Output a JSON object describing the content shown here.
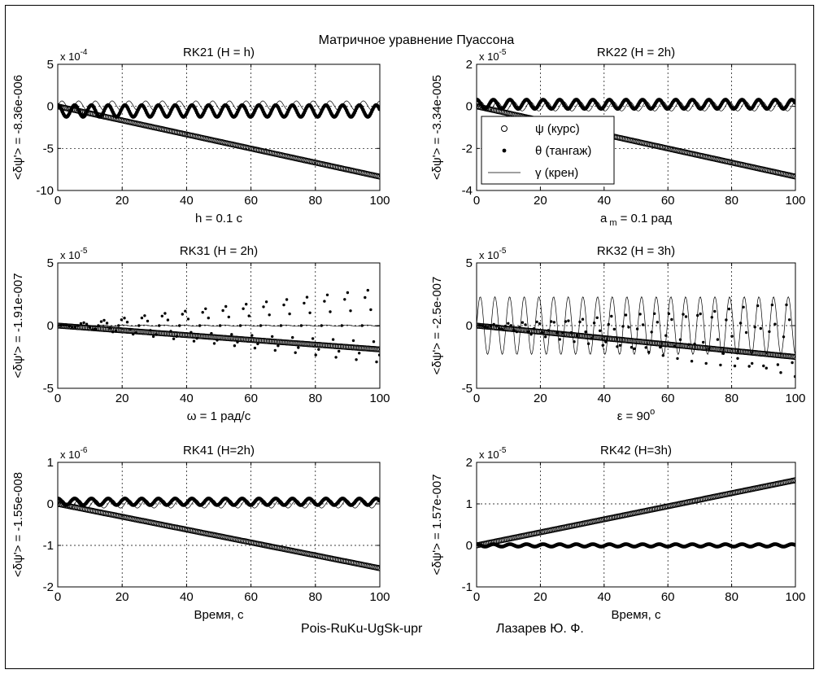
{
  "figure": {
    "suptitle": "Матричное уравнение Пуассона",
    "footer_left": "Pois-RuKu-UgSk-upr",
    "footer_right": "Лазарев Ю. Ф."
  },
  "legend": {
    "entries": [
      {
        "marker": "circle",
        "label": "ψ (курс)"
      },
      {
        "marker": "dot",
        "label": "θ (тангаж)"
      },
      {
        "marker": "line",
        "label": "γ (крен)"
      }
    ]
  },
  "chart_data": [
    {
      "type": "scatter",
      "title": "RK21 (H = h)",
      "xlabel": "h = 0.1 c",
      "ylabel": "<δψ'> = -8.36e-006",
      "exponent": "x 10",
      "exponent_power": "-4",
      "xlim": [
        0,
        100
      ],
      "ylim": [
        -10,
        5
      ],
      "xticks": [
        0,
        20,
        40,
        60,
        80,
        100
      ],
      "yticks": [
        -10,
        -5,
        0,
        5
      ],
      "ytick_labels": [
        "-10",
        "-5",
        "0",
        "5"
      ],
      "grid": true,
      "series": [
        {
          "marker": "circle",
          "kind": "trend",
          "end": -8.36
        },
        {
          "marker": "dot",
          "kind": "osc",
          "offset": -0.55,
          "amp": 0.7,
          "period": 5.2,
          "phase": 1.5
        },
        {
          "marker": "line",
          "kind": "osc",
          "offset": 0.1,
          "amp": 0.55,
          "period": 5.2,
          "phase": 0.0
        }
      ]
    },
    {
      "type": "scatter",
      "title": "RK22 (H = 2h)",
      "xlabel": "a",
      "xlabel_sub": "m",
      "xlabel_tail": "= 0.1 рад",
      "ylabel": "<δψ'> = -3.34e-005",
      "exponent": "x 10",
      "exponent_power": "-5",
      "xlim": [
        0,
        100
      ],
      "ylim": [
        -4,
        2
      ],
      "xticks": [
        0,
        20,
        40,
        60,
        80,
        100
      ],
      "yticks": [
        -4,
        -2,
        0,
        2
      ],
      "ytick_labels": [
        "-4",
        "-2",
        "0",
        "2"
      ],
      "grid": true,
      "legend": true,
      "series": [
        {
          "marker": "circle",
          "kind": "trend",
          "end": -3.34
        },
        {
          "marker": "dot",
          "kind": "osc",
          "offset": 0.1,
          "amp": 0.22,
          "period": 5.2,
          "phase": 1.5
        },
        {
          "marker": "line",
          "kind": "osc",
          "offset": 0.0,
          "amp": 0.22,
          "period": 5.2,
          "phase": 0.0
        }
      ]
    },
    {
      "type": "scatter",
      "title": "RK31 (H = 2h)",
      "xlabel": "ω = 1 рад/с",
      "ylabel": "<δψ'> = -1.91e-007",
      "exponent": "x 10",
      "exponent_power": "-5",
      "xlim": [
        0,
        100
      ],
      "ylim": [
        -5,
        5
      ],
      "xticks": [
        0,
        20,
        40,
        60,
        80,
        100
      ],
      "yticks": [
        -5,
        0,
        5
      ],
      "ytick_labels": [
        "-5",
        "0",
        "5"
      ],
      "grid": true,
      "series": [
        {
          "marker": "circle",
          "kind": "trend",
          "end": -1.9
        },
        {
          "marker": "dot",
          "kind": "grow",
          "offset": 0.0,
          "amp": 3.0,
          "period": 6.3,
          "phase": 0.0
        },
        {
          "marker": "line",
          "kind": "osc",
          "offset": 0.0,
          "amp": 0.05,
          "period": 6.3,
          "phase": 0.0
        }
      ]
    },
    {
      "type": "scatter",
      "title": "RK32 (H = 3h)",
      "xlabel": "ε = 90",
      "xlabel_sup": "o",
      "ylabel": "<δψ'> = -2.5e-007",
      "exponent": "x 10",
      "exponent_power": "-5",
      "xlim": [
        0,
        100
      ],
      "ylim": [
        -5,
        5
      ],
      "xticks": [
        0,
        20,
        40,
        60,
        80,
        100
      ],
      "yticks": [
        -5,
        0,
        5
      ],
      "ytick_labels": [
        "-5",
        "0",
        "5"
      ],
      "grid": true,
      "series": [
        {
          "marker": "circle",
          "kind": "trend",
          "end": -2.5
        },
        {
          "marker": "dot",
          "kind": "grow",
          "offset": -1.2,
          "amp": 3.0,
          "period": 4.6,
          "phase": 0.5
        },
        {
          "marker": "line",
          "kind": "osc",
          "offset": 0.0,
          "amp": 2.3,
          "period": 4.6,
          "phase": 0.0
        }
      ]
    },
    {
      "type": "scatter",
      "title": "RK41 (H=2h)",
      "xlabel": "Время, с",
      "ylabel": "<δψ'> = -1.55e-008",
      "exponent": "x 10",
      "exponent_power": "-6",
      "xlim": [
        0,
        100
      ],
      "ylim": [
        -2,
        1
      ],
      "xticks": [
        0,
        20,
        40,
        60,
        80,
        100
      ],
      "yticks": [
        -2,
        -1,
        0,
        1
      ],
      "ytick_labels": [
        "-2",
        "-1",
        "0",
        "1"
      ],
      "grid": true,
      "series": [
        {
          "marker": "circle",
          "kind": "trend",
          "end": -1.55
        },
        {
          "marker": "dot",
          "kind": "osc",
          "offset": 0.05,
          "amp": 0.08,
          "period": 5.2,
          "phase": 1.5
        },
        {
          "marker": "line",
          "kind": "osc",
          "offset": 0.0,
          "amp": 0.1,
          "period": 5.2,
          "phase": 0.0
        }
      ]
    },
    {
      "type": "scatter",
      "title": "RK42 (H=3h)",
      "xlabel": "Время, с",
      "ylabel": "<δψ'> = 1.57e-007",
      "exponent": "x 10",
      "exponent_power": "-5",
      "xlim": [
        0,
        100
      ],
      "ylim": [
        -1,
        2
      ],
      "xticks": [
        0,
        20,
        40,
        60,
        80,
        100
      ],
      "yticks": [
        -1,
        0,
        1,
        2
      ],
      "ytick_labels": [
        "-1",
        "0",
        "1",
        "2"
      ],
      "grid": true,
      "series": [
        {
          "marker": "circle",
          "kind": "trend",
          "end": 1.57
        },
        {
          "marker": "dot",
          "kind": "osc",
          "offset": 0.0,
          "amp": 0.03,
          "period": 5.2,
          "phase": 1.5
        },
        {
          "marker": "line",
          "kind": "osc",
          "offset": 0.0,
          "amp": 0.03,
          "period": 5.2,
          "phase": 0.0
        }
      ]
    }
  ]
}
